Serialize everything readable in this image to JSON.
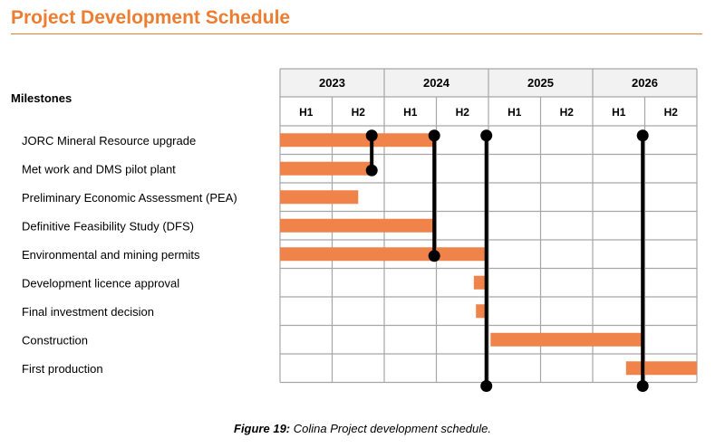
{
  "page_title": "Project Development Schedule",
  "caption": {
    "label": "Figure 19:",
    "text": "Colina Project development schedule."
  },
  "chart_data": {
    "type": "gantt",
    "row_header": "Milestones",
    "years": [
      "2023",
      "2024",
      "2025",
      "2026"
    ],
    "halves": [
      "H1",
      "H2",
      "H1",
      "H2",
      "H1",
      "H2",
      "H1",
      "H2"
    ],
    "time_range": [
      2023.0,
      2027.0
    ],
    "bar_color": "#F0834A",
    "grid_color": "#A6A6A6",
    "header_fill": "#F2F2F2",
    "tasks": [
      {
        "name": "JORC Mineral Resource upgrade",
        "start": 2023.0,
        "end": 2024.48
      },
      {
        "name": "Met work and DMS pilot plant",
        "start": 2023.0,
        "end": 2023.88
      },
      {
        "name": "Preliminary Economic Assessment (PEA)",
        "start": 2023.0,
        "end": 2023.75
      },
      {
        "name": "Definitive Feasibility Study (DFS)",
        "start": 2023.0,
        "end": 2024.48
      },
      {
        "name": "Environmental and mining permits",
        "start": 2023.0,
        "end": 2024.98
      },
      {
        "name": "Development licence approval",
        "start": 2024.86,
        "end": 2024.98
      },
      {
        "name": "Final investment decision",
        "start": 2024.88,
        "end": 2024.98
      },
      {
        "name": "Construction",
        "start": 2025.02,
        "end": 2026.48
      },
      {
        "name": "First production",
        "start": 2026.32,
        "end": 2027.0
      }
    ],
    "milestone_links": [
      {
        "x": 2023.88,
        "from_task": 0,
        "to_task": 1
      },
      {
        "x": 2024.48,
        "from_task": 0,
        "to_task": 4
      },
      {
        "x": 2024.98,
        "from_task": 0,
        "to_task": 9
      },
      {
        "x": 2026.48,
        "from_task": 0,
        "to_task": 9
      }
    ]
  }
}
